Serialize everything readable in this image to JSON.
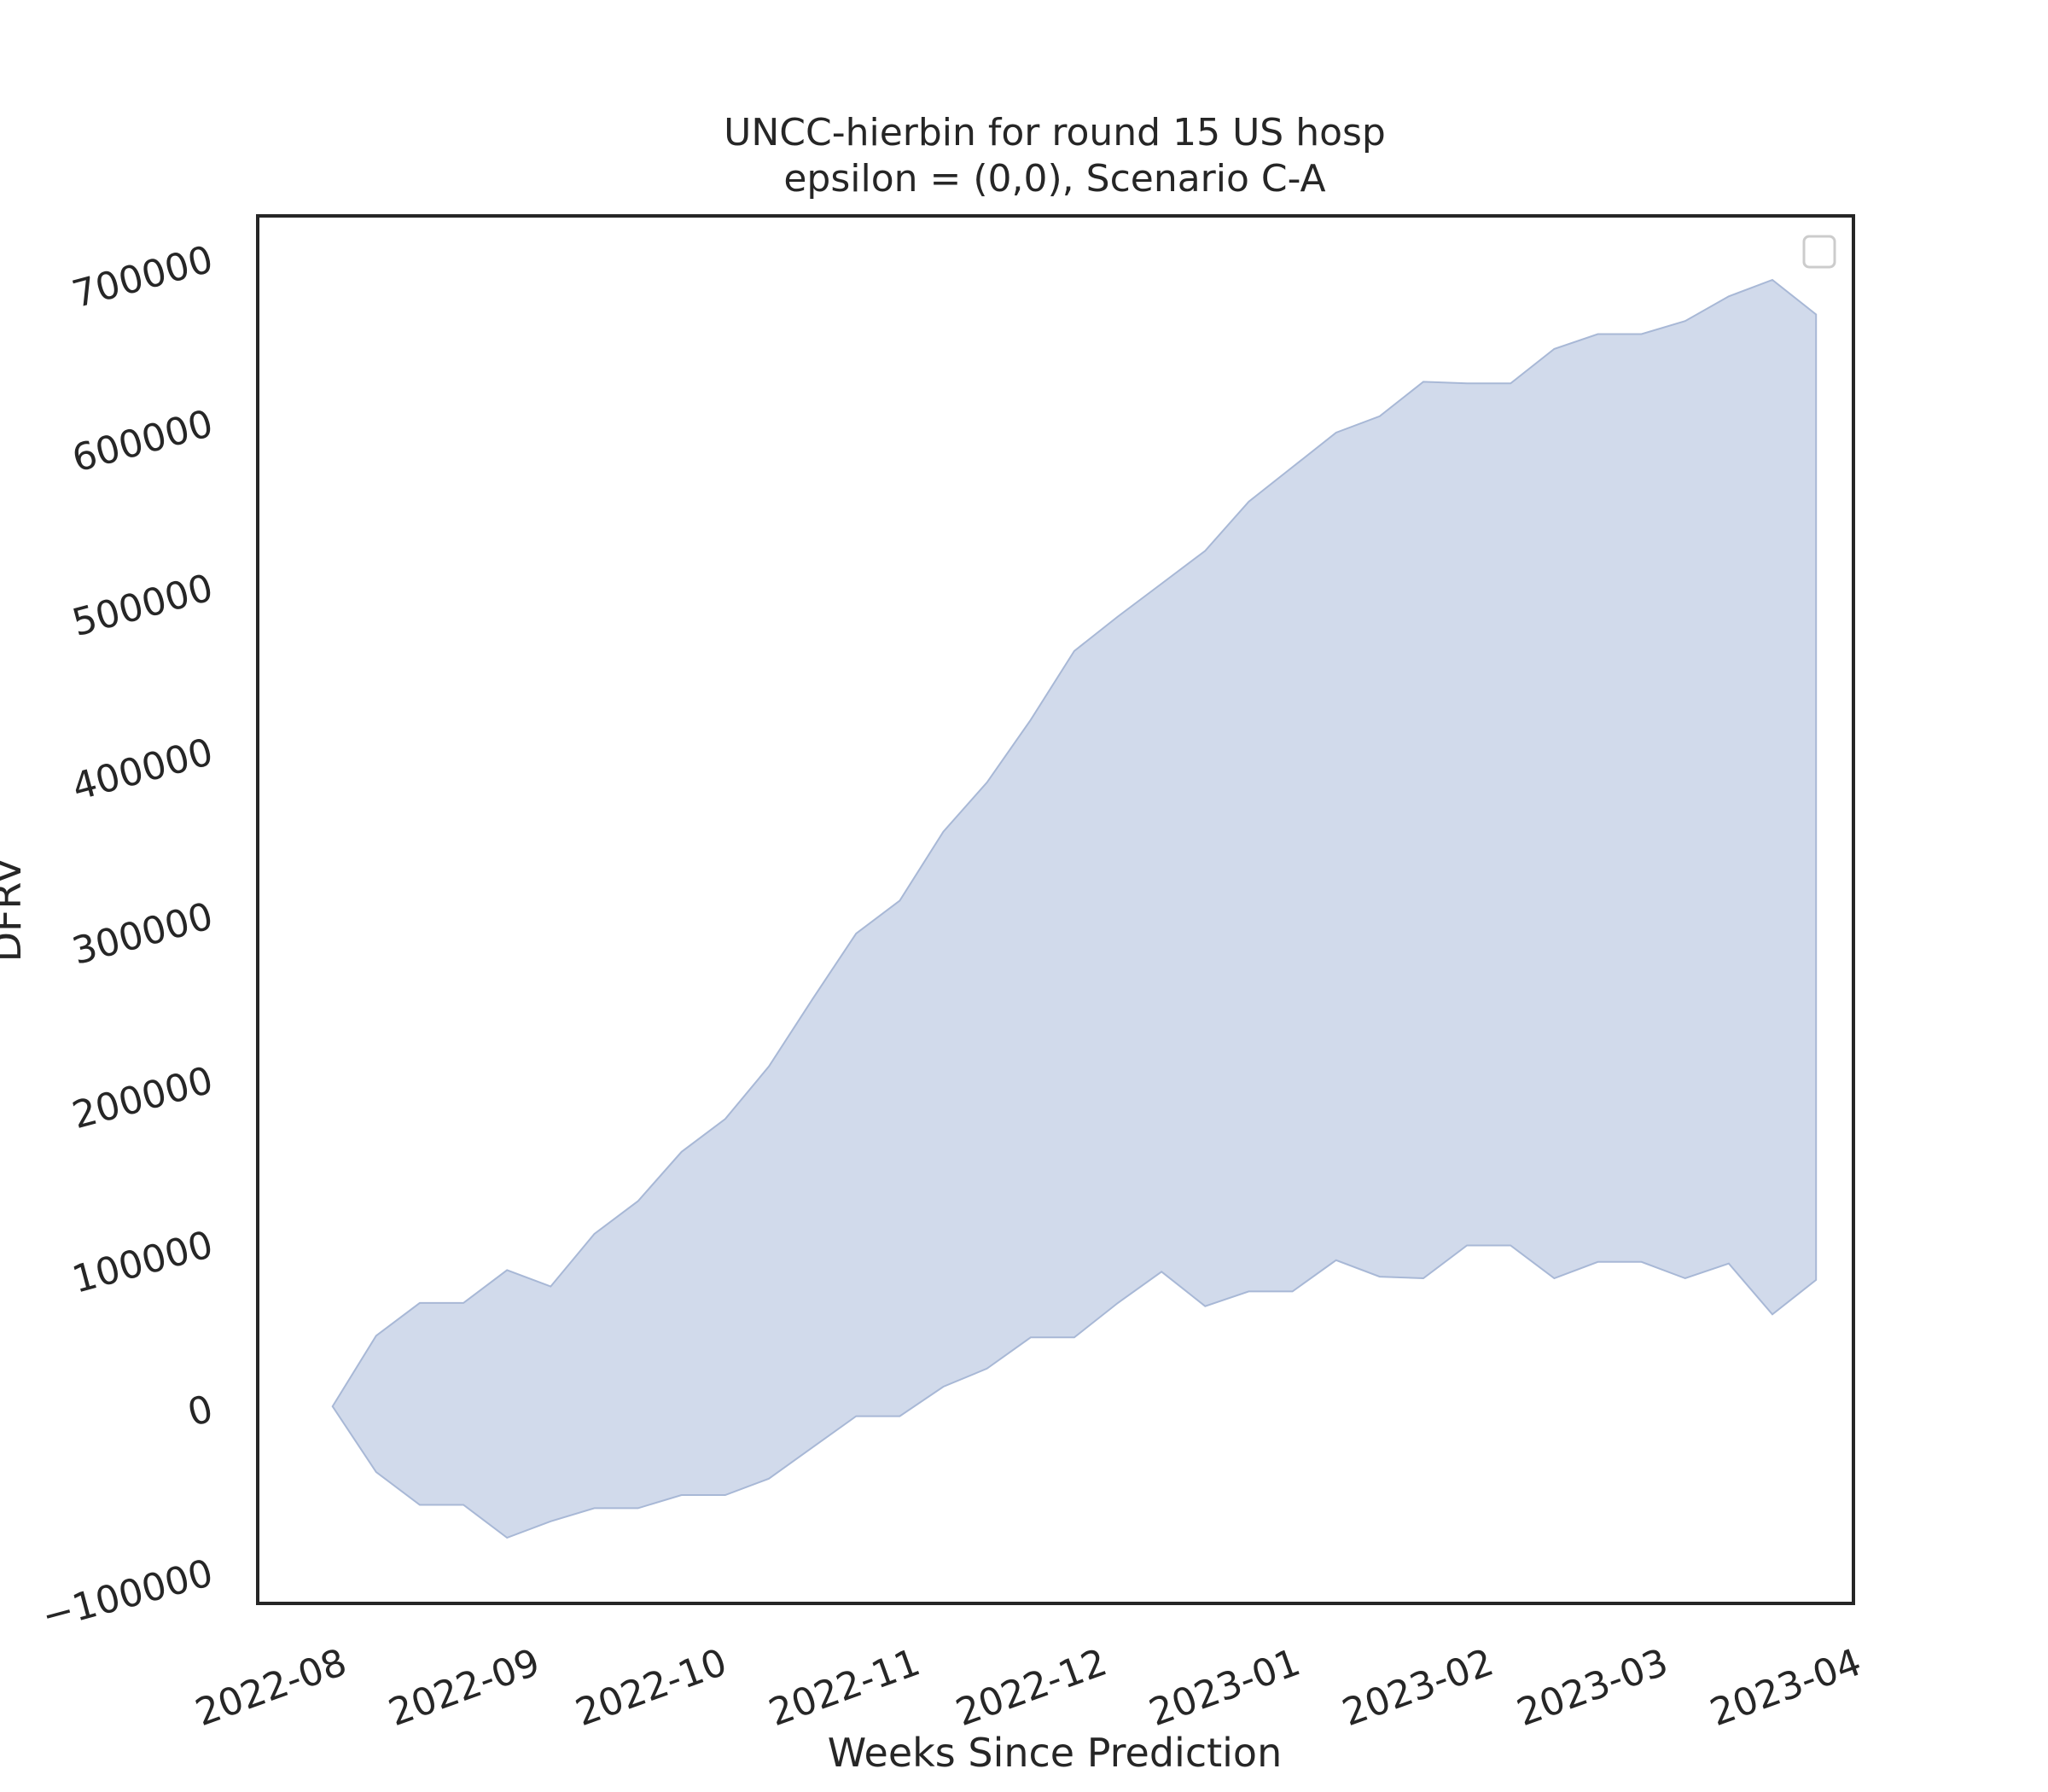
{
  "chart_data": {
    "type": "area",
    "title": "UNCC-hierbin for round 15 US hosp",
    "subtitle": "epsilon = (0,0), Scenario C-A",
    "xlabel": "Weeks Since Prediction",
    "ylabel": "DFRV",
    "x_tick_labels": [
      "2022-08",
      "2022-09",
      "2022-10",
      "2022-11",
      "2022-12",
      "2023-01",
      "2023-02",
      "2023-03",
      "2023-04"
    ],
    "x_tick_dates": [
      "2022-08-01",
      "2022-09-01",
      "2022-10-01",
      "2022-11-01",
      "2022-12-01",
      "2023-01-01",
      "2023-02-01",
      "2023-03-01",
      "2023-04-01"
    ],
    "y_ticks": [
      -100000,
      0,
      100000,
      200000,
      300000,
      400000,
      500000,
      600000,
      700000
    ],
    "y_tick_labels": [
      "−100000",
      "0",
      "100000",
      "200000",
      "300000",
      "400000",
      "500000",
      "600000",
      "700000"
    ],
    "xlim": [
      "2022-07-19",
      "2023-04-01"
    ],
    "ylim": [
      -120000,
      725000
    ],
    "grid": false,
    "legend": {
      "placement": "top-right",
      "entries": []
    },
    "fill_color": "#c5d1e6",
    "edge_color": "#a8b8d6",
    "series": [
      {
        "x": [
          "2022-07-31",
          "2022-08-07",
          "2022-08-14",
          "2022-08-21",
          "2022-08-28",
          "2022-09-04",
          "2022-09-11",
          "2022-09-18",
          "2022-09-25",
          "2022-10-02",
          "2022-10-09",
          "2022-10-16",
          "2022-10-23",
          "2022-10-30",
          "2022-11-06",
          "2022-11-13",
          "2022-11-20",
          "2022-11-27",
          "2022-12-04",
          "2022-12-11",
          "2022-12-18",
          "2022-12-25",
          "2023-01-01",
          "2023-01-08",
          "2023-01-15",
          "2023-01-22",
          "2023-01-29",
          "2023-02-05",
          "2023-02-12",
          "2023-02-19",
          "2023-02-26",
          "2023-03-05",
          "2023-03-12",
          "2023-03-19",
          "2023-03-26"
        ],
        "lower": [
          0,
          -40000,
          -60000,
          -60000,
          -80000,
          -70000,
          -62000,
          -62000,
          -54000,
          -54000,
          -44000,
          -25000,
          -6000,
          -6000,
          12000,
          23000,
          42000,
          42000,
          63000,
          82000,
          61000,
          70000,
          70000,
          89000,
          79000,
          78000,
          98000,
          98000,
          78000,
          88000,
          88000,
          78000,
          87000,
          56000,
          77000
        ],
        "upper": [
          0,
          43000,
          63000,
          63000,
          83000,
          73000,
          105000,
          125000,
          155000,
          175000,
          207000,
          248000,
          288000,
          308000,
          350000,
          380000,
          418000,
          460000,
          481000,
          501000,
          521000,
          551000,
          572000,
          593000,
          603000,
          624000,
          623000,
          623000,
          644000,
          653000,
          653000,
          661000,
          676000,
          686000,
          665000
        ]
      }
    ]
  }
}
